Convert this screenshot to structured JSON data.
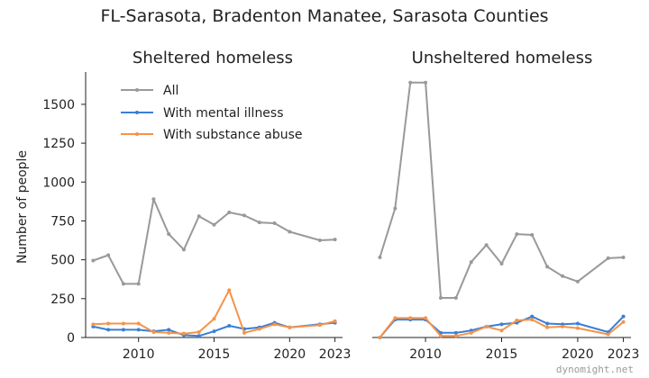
{
  "title": "FL-Sarasota, Bradenton Manatee, Sarasota Counties",
  "ylabel": "Number of people",
  "watermark": "dynomight.net",
  "colors": {
    "all": "#999999",
    "mental": "#3a7fd5",
    "substance": "#f4934a"
  },
  "legend": [
    "All",
    "With mental illness",
    "With substance abuse"
  ],
  "chart_data": [
    {
      "type": "line",
      "title": "Sheltered homeless",
      "xlim": [
        2006.5,
        2023.5
      ],
      "ylim": [
        0,
        1650
      ],
      "xticks": [
        "2010",
        "2015",
        "2020",
        "2023"
      ],
      "yticks": [
        "0",
        "250",
        "500",
        "750",
        "1000",
        "1250",
        "1500"
      ],
      "legend_position": "top-left",
      "series": [
        {
          "name": "All",
          "x": [
            2007,
            2008,
            2009,
            2010,
            2011,
            2012,
            2013,
            2014,
            2015,
            2016,
            2017,
            2018,
            2019,
            2020,
            2022,
            2023
          ],
          "values": [
            495,
            530,
            345,
            345,
            890,
            665,
            565,
            780,
            725,
            805,
            785,
            740,
            735,
            680,
            625,
            630
          ]
        },
        {
          "name": "With mental illness",
          "x": [
            2007,
            2008,
            2009,
            2010,
            2011,
            2012,
            2013,
            2014,
            2015,
            2016,
            2017,
            2018,
            2019,
            2020,
            2022,
            2023
          ],
          "values": [
            70,
            50,
            50,
            50,
            40,
            50,
            15,
            10,
            40,
            75,
            55,
            65,
            95,
            65,
            85,
            95
          ]
        },
        {
          "name": "With substance abuse",
          "x": [
            2007,
            2008,
            2009,
            2010,
            2011,
            2012,
            2013,
            2014,
            2015,
            2016,
            2017,
            2018,
            2019,
            2020,
            2022,
            2023
          ],
          "values": [
            85,
            90,
            90,
            90,
            35,
            30,
            25,
            35,
            120,
            305,
            30,
            55,
            85,
            65,
            80,
            105
          ]
        }
      ]
    },
    {
      "type": "line",
      "title": "Unsheltered homeless",
      "xlim": [
        2006.5,
        2023.5
      ],
      "ylim": [
        0,
        1650
      ],
      "xticks": [
        "2010",
        "2015",
        "2020",
        "2023"
      ],
      "series": [
        {
          "name": "All",
          "x": [
            2007,
            2008,
            2009,
            2010,
            2011,
            2012,
            2013,
            2014,
            2015,
            2016,
            2017,
            2018,
            2019,
            2020,
            2022,
            2023
          ],
          "values": [
            515,
            830,
            1640,
            1640,
            255,
            255,
            485,
            595,
            475,
            665,
            660,
            455,
            395,
            360,
            510,
            515
          ]
        },
        {
          "name": "With mental illness",
          "x": [
            2007,
            2008,
            2009,
            2010,
            2011,
            2012,
            2013,
            2014,
            2015,
            2016,
            2017,
            2018,
            2019,
            2020,
            2022,
            2023
          ],
          "values": [
            0,
            115,
            115,
            115,
            30,
            30,
            45,
            70,
            85,
            95,
            135,
            90,
            85,
            90,
            35,
            135
          ]
        },
        {
          "name": "With substance abuse",
          "x": [
            2007,
            2008,
            2009,
            2010,
            2011,
            2012,
            2013,
            2014,
            2015,
            2016,
            2017,
            2018,
            2019,
            2020,
            2022,
            2023
          ],
          "values": [
            0,
            125,
            125,
            125,
            10,
            10,
            30,
            70,
            45,
            110,
            115,
            65,
            70,
            60,
            20,
            100
          ]
        }
      ]
    }
  ]
}
